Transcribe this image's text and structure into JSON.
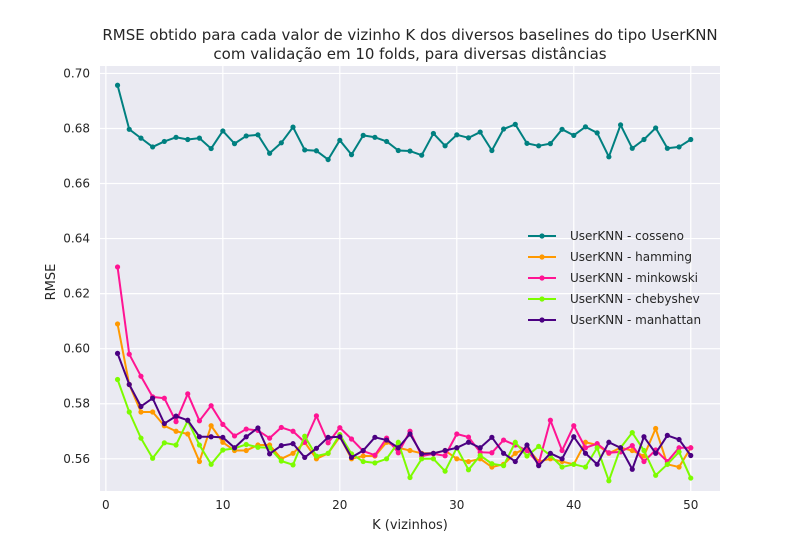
{
  "chart_data": {
    "type": "line",
    "title_line1": "RMSE obtido para cada valor de vizinho K  dos diversos baselines do tipo UserKNN",
    "title_line2": "com validação em 10 folds, para diversas distâncias",
    "xlabel": "K (vizinhos)",
    "ylabel": "RMSE",
    "xlim": [
      -0.5,
      52.5
    ],
    "ylim": [
      0.5483,
      0.7027
    ],
    "xticks": [
      0,
      10,
      20,
      30,
      40,
      50
    ],
    "yticks": [
      0.56,
      0.58,
      0.6,
      0.62,
      0.64,
      0.66,
      0.68,
      0.7
    ],
    "grid": true,
    "background": "#eaeaf2",
    "legend_position": "center-right",
    "x": [
      1,
      2,
      3,
      4,
      5,
      6,
      7,
      8,
      9,
      10,
      11,
      12,
      13,
      14,
      15,
      16,
      17,
      18,
      19,
      20,
      21,
      22,
      23,
      24,
      25,
      26,
      27,
      28,
      29,
      30,
      31,
      32,
      33,
      34,
      35,
      36,
      37,
      38,
      39,
      40,
      41,
      42,
      43,
      44,
      45,
      46,
      47,
      48,
      49,
      50
    ],
    "series": [
      {
        "name": "UserKNN - cosseno",
        "color": "#008080",
        "values": [
          0.6957,
          0.6797,
          0.6765,
          0.6733,
          0.6753,
          0.6768,
          0.676,
          0.6765,
          0.6727,
          0.6791,
          0.6745,
          0.6773,
          0.6777,
          0.671,
          0.6748,
          0.6805,
          0.6722,
          0.6719,
          0.6687,
          0.6757,
          0.6705,
          0.6775,
          0.6768,
          0.6753,
          0.672,
          0.6718,
          0.6703,
          0.6782,
          0.6737,
          0.6777,
          0.6766,
          0.6787,
          0.672,
          0.6798,
          0.6815,
          0.6746,
          0.6737,
          0.6745,
          0.6797,
          0.6775,
          0.6806,
          0.6784,
          0.6697,
          0.6813,
          0.6728,
          0.676,
          0.6802,
          0.6728,
          0.6733,
          0.676
        ]
      },
      {
        "name": "UserKNN - hamming",
        "color": "#ff9900",
        "values": [
          0.609,
          0.587,
          0.577,
          0.577,
          0.572,
          0.57,
          0.569,
          0.559,
          0.572,
          0.566,
          0.563,
          0.563,
          0.565,
          0.565,
          0.56,
          0.562,
          0.566,
          0.56,
          0.562,
          0.568,
          0.56,
          0.561,
          0.561,
          0.566,
          0.564,
          0.563,
          0.562,
          0.562,
          0.563,
          0.56,
          0.559,
          0.56,
          0.557,
          0.558,
          0.562,
          0.564,
          0.559,
          0.56,
          0.559,
          0.558,
          0.566,
          0.565,
          0.562,
          0.564,
          0.563,
          0.561,
          0.571,
          0.558,
          0.557,
          0.564
        ]
      },
      {
        "name": "UserKNN - minkowski",
        "color": "#ff1493",
        "values": [
          0.6297,
          0.598,
          0.59,
          0.5825,
          0.582,
          0.5735,
          0.5836,
          0.5738,
          0.5793,
          0.5725,
          0.5683,
          0.5708,
          0.5703,
          0.5675,
          0.5714,
          0.57,
          0.566,
          0.5756,
          0.5658,
          0.5713,
          0.5672,
          0.5628,
          0.5613,
          0.5675,
          0.5622,
          0.57,
          0.561,
          0.5618,
          0.5611,
          0.569,
          0.5679,
          0.5624,
          0.5622,
          0.5668,
          0.565,
          0.563,
          0.5582,
          0.574,
          0.563,
          0.572,
          0.564,
          0.5655,
          0.5622,
          0.5625,
          0.5648,
          0.559,
          0.5632,
          0.559,
          0.564,
          0.564
        ]
      },
      {
        "name": "UserKNN - chebyshev",
        "color": "#7cfc00",
        "values": [
          0.5888,
          0.577,
          0.5675,
          0.5602,
          0.5658,
          0.565,
          0.5738,
          0.565,
          0.558,
          0.5632,
          0.5638,
          0.5652,
          0.5642,
          0.564,
          0.5592,
          0.5578,
          0.5682,
          0.561,
          0.562,
          0.5688,
          0.5618,
          0.559,
          0.5585,
          0.56,
          0.566,
          0.5532,
          0.56,
          0.56,
          0.5555,
          0.564,
          0.556,
          0.5612,
          0.5582,
          0.5575,
          0.566,
          0.561,
          0.5645,
          0.5612,
          0.557,
          0.558,
          0.557,
          0.564,
          0.552,
          0.564,
          0.5695,
          0.563,
          0.554,
          0.558,
          0.5625,
          0.553
        ]
      },
      {
        "name": "UserKNN - manhattan",
        "color": "#4b0082",
        "values": [
          0.5983,
          0.587,
          0.579,
          0.582,
          0.5728,
          0.5755,
          0.574,
          0.568,
          0.568,
          0.5678,
          0.564,
          0.568,
          0.5712,
          0.5618,
          0.5648,
          0.5655,
          0.5605,
          0.5638,
          0.5678,
          0.568,
          0.5605,
          0.563,
          0.5678,
          0.5668,
          0.564,
          0.569,
          0.5618,
          0.562,
          0.563,
          0.564,
          0.566,
          0.564,
          0.5678,
          0.562,
          0.559,
          0.565,
          0.5575,
          0.562,
          0.56,
          0.568,
          0.562,
          0.558,
          0.566,
          0.564,
          0.5562,
          0.568,
          0.562,
          0.5685,
          0.567,
          0.5612
        ]
      }
    ]
  }
}
